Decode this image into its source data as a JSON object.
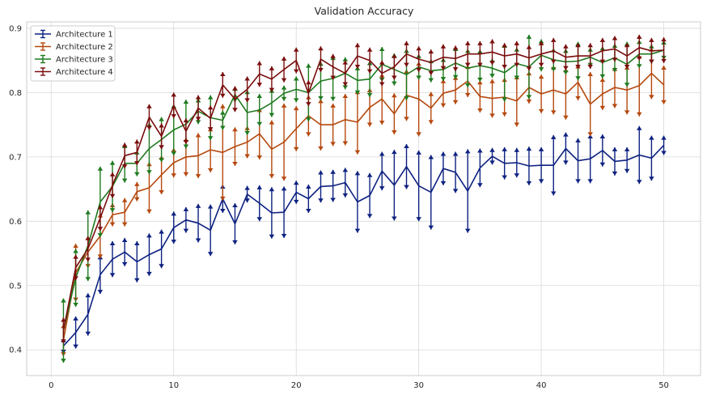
{
  "chart_data": {
    "type": "line",
    "title": "Validation Accuracy",
    "xlabel": "",
    "ylabel": "",
    "xlim": [
      -2,
      53
    ],
    "ylim": [
      0.36,
      0.91
    ],
    "x_ticks": [
      0,
      10,
      20,
      30,
      40,
      50
    ],
    "y_ticks": [
      0.4,
      0.5,
      0.6,
      0.7,
      0.8,
      0.9
    ],
    "grid": true,
    "legend_position": "top-left",
    "x": [
      1,
      2,
      3,
      4,
      5,
      6,
      7,
      8,
      9,
      10,
      11,
      12,
      13,
      14,
      15,
      16,
      17,
      18,
      19,
      20,
      21,
      22,
      23,
      24,
      25,
      26,
      27,
      28,
      29,
      30,
      31,
      32,
      33,
      34,
      35,
      36,
      37,
      38,
      39,
      40,
      41,
      42,
      43,
      44,
      45,
      46,
      47,
      48,
      49,
      50
    ],
    "series": [
      {
        "name": "Architecture 1",
        "color": "#0d2180",
        "values": [
          0.406,
          0.427,
          0.455,
          0.517,
          0.541,
          0.552,
          0.537,
          0.548,
          0.557,
          0.59,
          0.602,
          0.597,
          0.586,
          0.635,
          0.596,
          0.642,
          0.628,
          0.613,
          0.614,
          0.645,
          0.635,
          0.654,
          0.655,
          0.66,
          0.63,
          0.64,
          0.678,
          0.656,
          0.685,
          0.655,
          0.645,
          0.682,
          0.676,
          0.647,
          0.683,
          0.701,
          0.69,
          0.691,
          0.686,
          0.687,
          0.687,
          0.713,
          0.694,
          0.697,
          0.71,
          0.693,
          0.695,
          0.703,
          0.698,
          0.718
        ],
        "errors": [
          0.012,
          0.025,
          0.033,
          0.03,
          0.028,
          0.022,
          0.032,
          0.033,
          0.03,
          0.025,
          0.02,
          0.03,
          0.04,
          0.022,
          0.032,
          0.013,
          0.028,
          0.04,
          0.04,
          0.018,
          0.022,
          0.025,
          0.025,
          0.023,
          0.048,
          0.035,
          0.03,
          0.055,
          0.035,
          0.055,
          0.058,
          0.026,
          0.032,
          0.065,
          0.03,
          0.013,
          0.025,
          0.023,
          0.03,
          0.028,
          0.047,
          0.025,
          0.035,
          0.038,
          0.025,
          0.022,
          0.02,
          0.045,
          0.035,
          0.015
        ]
      },
      {
        "name": "Architecture 2",
        "color": "#b5480e",
        "values": [
          0.415,
          0.52,
          0.552,
          0.577,
          0.61,
          0.614,
          0.646,
          0.652,
          0.672,
          0.691,
          0.7,
          0.702,
          0.711,
          0.707,
          0.716,
          0.723,
          0.736,
          0.712,
          0.723,
          0.744,
          0.764,
          0.75,
          0.75,
          0.758,
          0.754,
          0.777,
          0.79,
          0.767,
          0.796,
          0.79,
          0.776,
          0.799,
          0.804,
          0.818,
          0.794,
          0.791,
          0.793,
          0.787,
          0.808,
          0.798,
          0.804,
          0.798,
          0.816,
          0.782,
          0.798,
          0.808,
          0.804,
          0.811,
          0.83,
          0.812
        ],
        "errors": [
          0.025,
          0.045,
          0.025,
          0.035,
          0.018,
          0.022,
          0.015,
          0.04,
          0.03,
          0.023,
          0.03,
          0.035,
          0.035,
          0.075,
          0.03,
          0.025,
          0.04,
          0.045,
          0.06,
          0.035,
          0.032,
          0.04,
          0.033,
          0.04,
          0.05,
          0.03,
          0.04,
          0.032,
          0.04,
          0.058,
          0.025,
          0.022,
          0.022,
          0.025,
          0.025,
          0.03,
          0.03,
          0.04,
          0.025,
          0.03,
          0.038,
          0.04,
          0.028,
          0.05,
          0.025,
          0.032,
          0.038,
          0.048,
          0.04,
          0.03
        ]
      },
      {
        "name": "Architecture 3",
        "color": "#1f7a1f",
        "values": [
          0.43,
          0.512,
          0.562,
          0.63,
          0.654,
          0.69,
          0.69,
          0.713,
          0.727,
          0.742,
          0.751,
          0.771,
          0.761,
          0.757,
          0.797,
          0.769,
          0.773,
          0.784,
          0.799,
          0.805,
          0.8,
          0.818,
          0.822,
          0.83,
          0.819,
          0.821,
          0.844,
          0.836,
          0.828,
          0.84,
          0.834,
          0.836,
          0.846,
          0.838,
          0.842,
          0.838,
          0.831,
          0.845,
          0.84,
          0.858,
          0.851,
          0.848,
          0.849,
          0.855,
          0.847,
          0.854,
          0.844,
          0.86,
          0.86,
          0.866
        ],
        "errors": [
          0.05,
          0.045,
          0.055,
          0.055,
          0.04,
          0.03,
          0.02,
          0.04,
          0.035,
          0.04,
          0.038,
          0.02,
          0.035,
          0.015,
          0.012,
          0.035,
          0.025,
          0.022,
          0.012,
          0.02,
          0.045,
          0.03,
          0.035,
          0.025,
          0.022,
          0.028,
          0.027,
          0.025,
          0.04,
          0.02,
          0.018,
          0.018,
          0.025,
          0.03,
          0.025,
          0.015,
          0.045,
          0.025,
          0.05,
          0.025,
          0.018,
          0.02,
          0.03,
          0.015,
          0.025,
          0.022,
          0.035,
          0.022,
          0.015,
          0.015
        ]
      },
      {
        "name": "Architecture 4",
        "color": "#7a0d0d",
        "values": [
          0.43,
          0.528,
          0.557,
          0.605,
          0.656,
          0.702,
          0.707,
          0.762,
          0.732,
          0.78,
          0.74,
          0.776,
          0.76,
          0.812,
          0.79,
          0.805,
          0.829,
          0.821,
          0.836,
          0.85,
          0.799,
          0.852,
          0.84,
          0.83,
          0.857,
          0.85,
          0.83,
          0.84,
          0.86,
          0.852,
          0.847,
          0.855,
          0.853,
          0.86,
          0.86,
          0.863,
          0.857,
          0.86,
          0.854,
          0.86,
          0.865,
          0.855,
          0.857,
          0.857,
          0.865,
          0.868,
          0.857,
          0.87,
          0.865,
          0.866
        ]
      }
    ]
  }
}
